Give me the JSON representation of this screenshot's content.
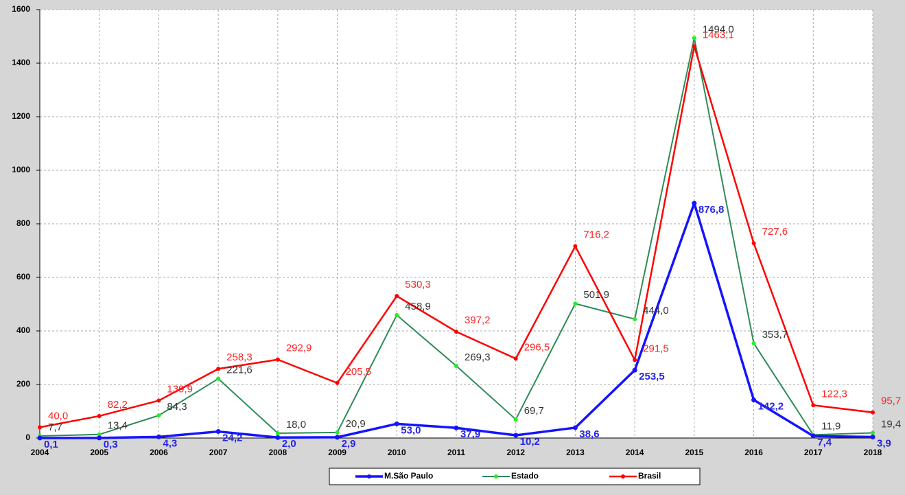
{
  "chart_data": {
    "type": "line",
    "categories": [
      "2004",
      "2005",
      "2006",
      "2007",
      "2008",
      "2009",
      "2010",
      "2011",
      "2012",
      "2013",
      "2014",
      "2015",
      "2016",
      "2017",
      "2018"
    ],
    "series": [
      {
        "name": "M.São Paulo",
        "color": "#1414ff",
        "label_color": "#2525e6",
        "line_width": 3.5,
        "values": [
          0.1,
          0.3,
          4.3,
          24.2,
          2.0,
          2.9,
          53.0,
          37.9,
          10.2,
          38.6,
          253.5,
          876.8,
          142.2,
          7.4,
          3.9
        ],
        "value_labels": [
          "0,1",
          "0,3",
          "4,3",
          "24,2",
          "2,0",
          "2,9",
          "53,0",
          "37,9",
          "10,2",
          "38,6",
          "253,5",
          "876,8",
          "142,2",
          "7,4",
          "3,9"
        ]
      },
      {
        "name": "Estado",
        "color": "#2e8b57",
        "marker_color": "#22ee22",
        "label_color": "#333333",
        "line_width": 2,
        "values": [
          7.7,
          13.4,
          84.3,
          221.6,
          18.0,
          20.9,
          458.9,
          269.3,
          69.7,
          501.9,
          444.0,
          1494.0,
          353.7,
          11.9,
          19.4
        ],
        "value_labels": [
          "7,7",
          "13,4",
          "84,3",
          "221,6",
          "18,0",
          "20,9",
          "458,9",
          "269,3",
          "69,7",
          "501,9",
          "444,0",
          "1494,0",
          "353,7",
          "11,9",
          "19,4"
        ]
      },
      {
        "name": "Brasil",
        "color": "#ff0000",
        "label_color": "#ff2222",
        "line_width": 2.5,
        "values": [
          40.0,
          82.2,
          139.9,
          258.3,
          292.9,
          205.5,
          530.3,
          397.2,
          296.5,
          716.2,
          291.5,
          1463.1,
          727.6,
          122.3,
          95.7
        ],
        "value_labels": [
          "40,0",
          "82,2",
          "139,9",
          "258,3",
          "292,9",
          "205,5",
          "530,3",
          "397,2",
          "296,5",
          "716,2",
          "291,5",
          "1463,1",
          "727,6",
          "122,3",
          "95,7"
        ]
      }
    ],
    "ylim": [
      0,
      1600
    ],
    "yticks": [
      0,
      200,
      400,
      600,
      800,
      1000,
      1200,
      1400,
      1600
    ],
    "grid": true,
    "legend": "bottom"
  }
}
